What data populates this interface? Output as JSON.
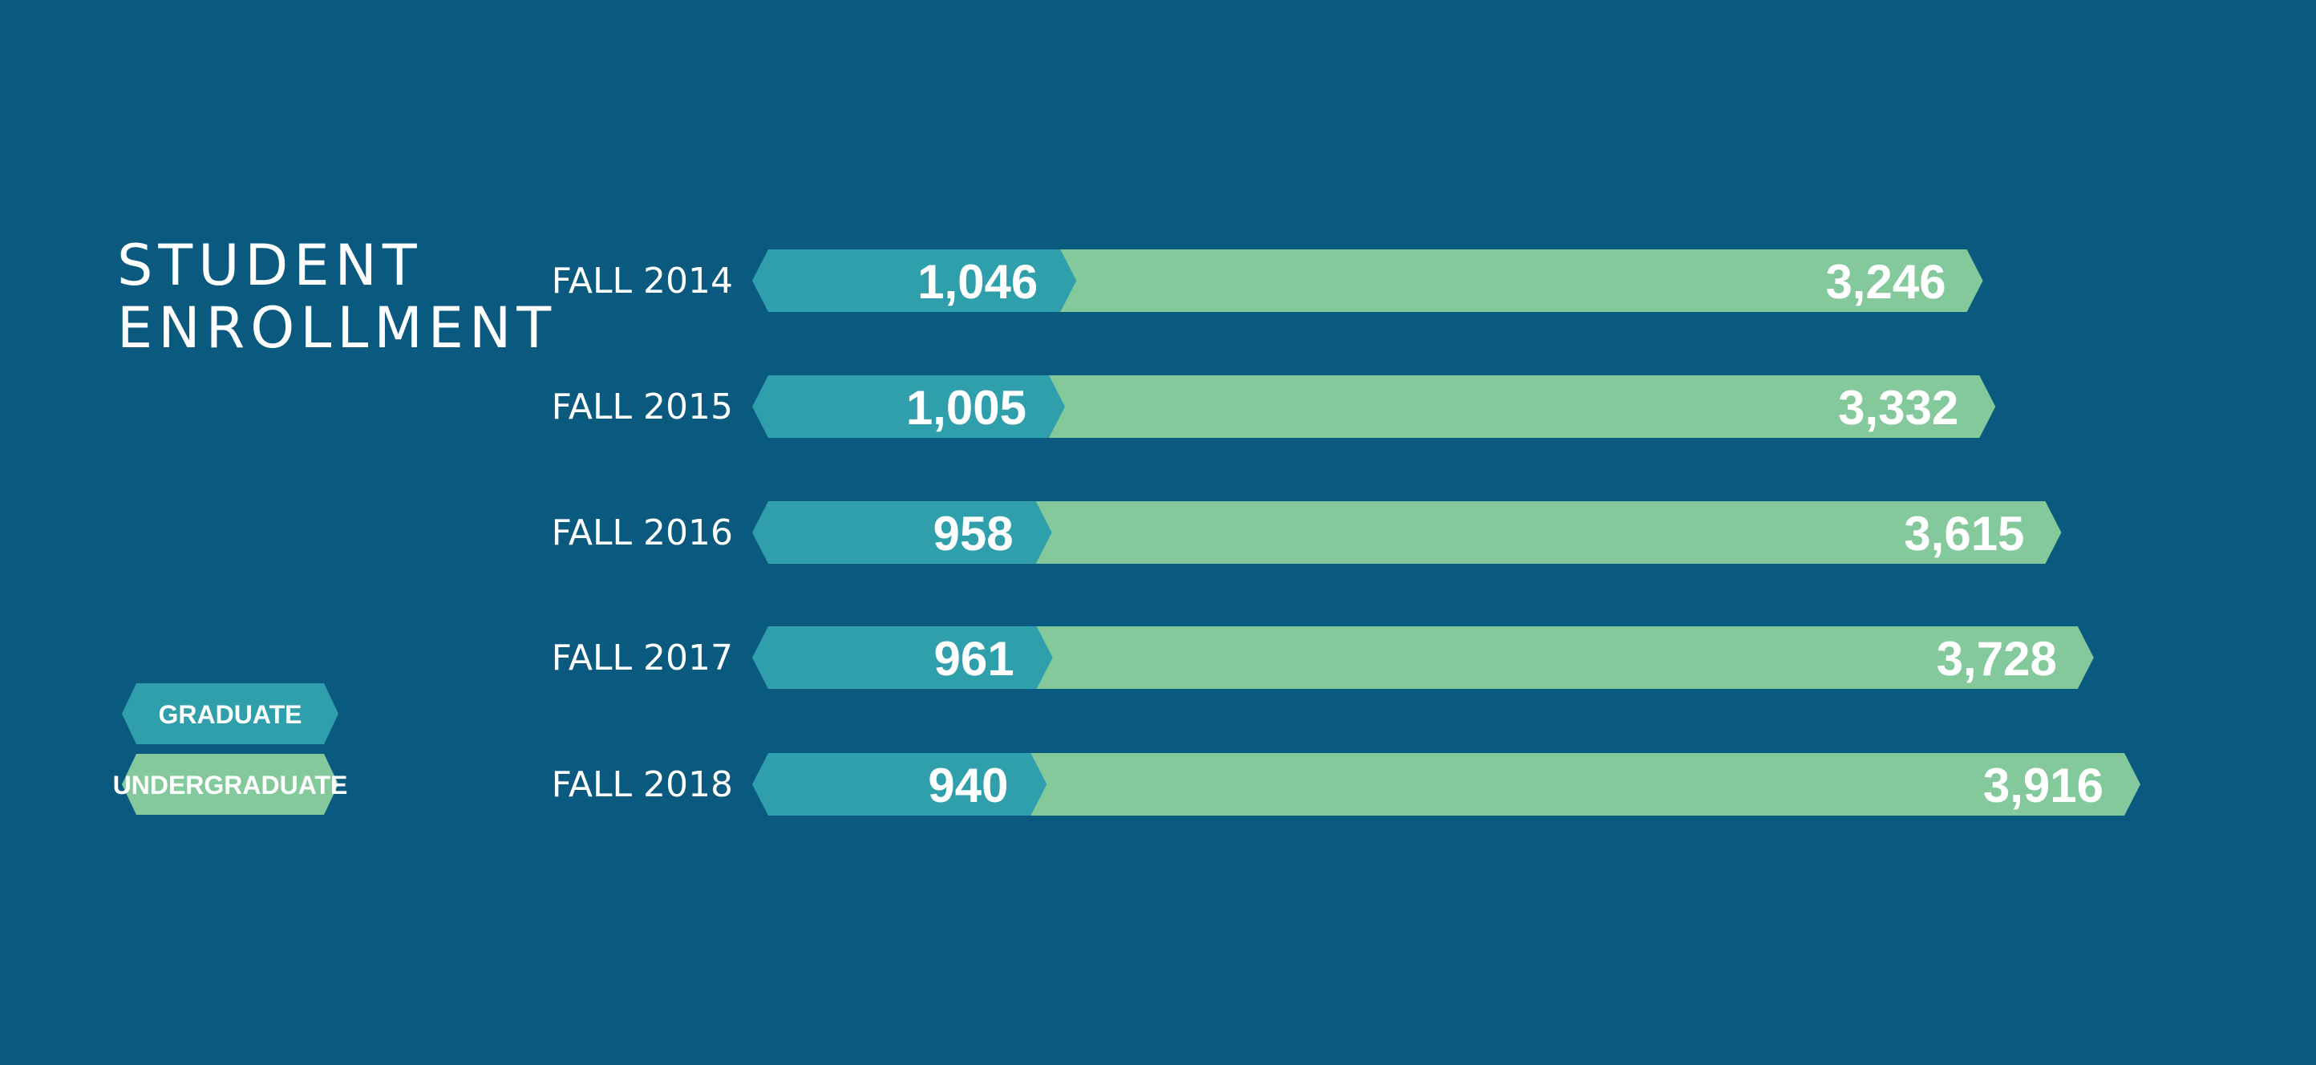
{
  "title_lines": [
    "STUDENT",
    "ENROLLMENT"
  ],
  "colors": {
    "background": "#0a5a80",
    "graduate": "#2f9fac",
    "undergraduate": "#83c99b",
    "text": "#ffffff"
  },
  "legend": [
    {
      "label": "GRADUATE",
      "color": "#2f9fac"
    },
    {
      "label": "UNDERGRADUATE",
      "color": "#83c99b"
    }
  ],
  "chart_data": {
    "type": "bar",
    "orientation": "horizontal",
    "stacked": true,
    "title": "STUDENT ENROLLMENT",
    "categories": [
      "FALL 2014",
      "FALL 2015",
      "FALL 2016",
      "FALL 2017",
      "FALL 2018"
    ],
    "series": [
      {
        "name": "GRADUATE",
        "values": [
          1046,
          1005,
          958,
          961,
          940
        ]
      },
      {
        "name": "UNDERGRADUATE",
        "values": [
          3246,
          3332,
          3615,
          3728,
          3916
        ]
      }
    ],
    "value_labels": {
      "graduate": [
        "1,046",
        "1,005",
        "958",
        "961",
        "940"
      ],
      "undergraduate": [
        "3,246",
        "3,332",
        "3,615",
        "3,728",
        "3,916"
      ]
    },
    "xlim": [
      0,
      4856
    ],
    "grid": false,
    "legend_position": "left"
  }
}
